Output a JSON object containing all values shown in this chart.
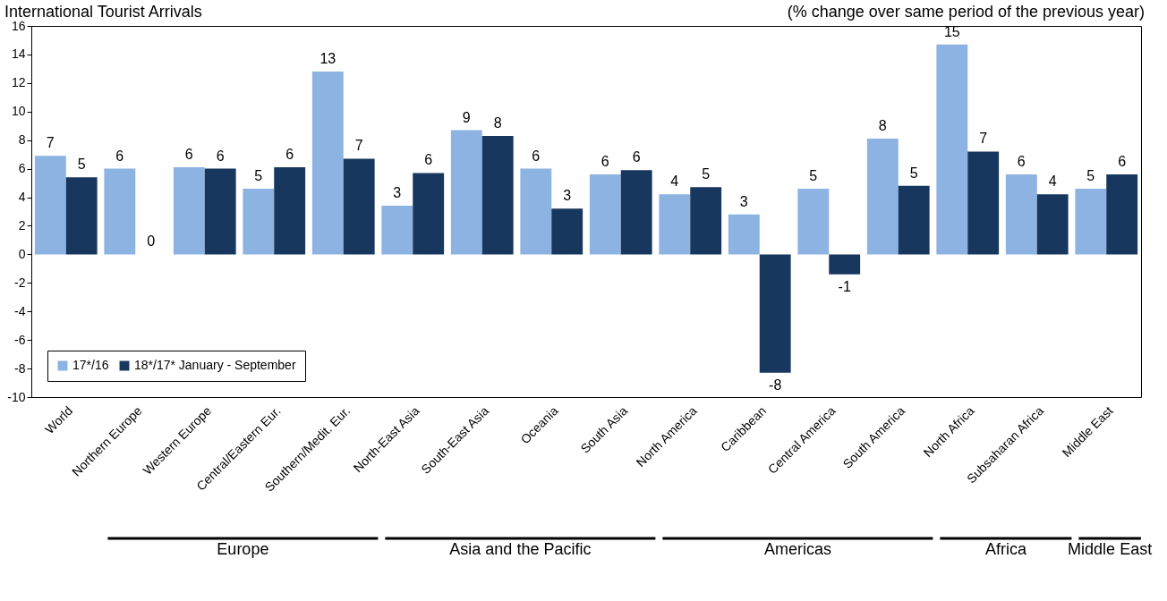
{
  "chart_data": {
    "type": "bar",
    "title": "International Tourist Arrivals",
    "subtitle": "(% change over same period of the previous year)",
    "categories": [
      "World",
      "Northern Europe",
      "Western Europe",
      "Central/Eastern Eur.",
      "Southern/Medit. Eur.",
      "North-East Asia",
      "South-East Asia",
      "Oceania",
      "South Asia",
      "North America",
      "Caribbean",
      "Central America",
      "South America",
      "North Africa",
      "Subsaharan Africa",
      "Middle East"
    ],
    "series": [
      {
        "name": "17*/16",
        "color": "#8db3e2",
        "values": [
          6.9,
          6.0,
          6.1,
          4.6,
          12.8,
          3.4,
          8.7,
          6.0,
          5.6,
          4.2,
          2.8,
          4.6,
          8.1,
          14.7,
          5.6,
          4.6
        ],
        "value_labels": [
          "7",
          "6",
          "6",
          "5",
          "13",
          "3",
          "9",
          "6",
          "6",
          "4",
          "3",
          "5",
          "8",
          "15",
          "6",
          "5"
        ]
      },
      {
        "name": "18*/17* January - September",
        "color": "#17375e",
        "values": [
          5.4,
          0.0,
          6.0,
          6.1,
          6.7,
          5.7,
          8.3,
          3.2,
          5.9,
          4.7,
          -8.3,
          -1.4,
          4.8,
          7.2,
          4.2,
          5.6
        ],
        "value_labels": [
          "5",
          "0",
          "6",
          "6",
          "7",
          "6",
          "8",
          "3",
          "6",
          "5",
          "-8",
          "-1",
          "5",
          "7",
          "4",
          "6"
        ]
      }
    ],
    "ylim": [
      -10,
      16
    ],
    "yticks": [
      -10,
      -8,
      -6,
      -4,
      -2,
      0,
      2,
      4,
      6,
      8,
      10,
      12,
      14,
      16
    ],
    "legend": "bottom left",
    "annotations": [
      "Europe",
      "Asia and the Pacific",
      "Americas",
      "Africa",
      "Middle East"
    ]
  }
}
